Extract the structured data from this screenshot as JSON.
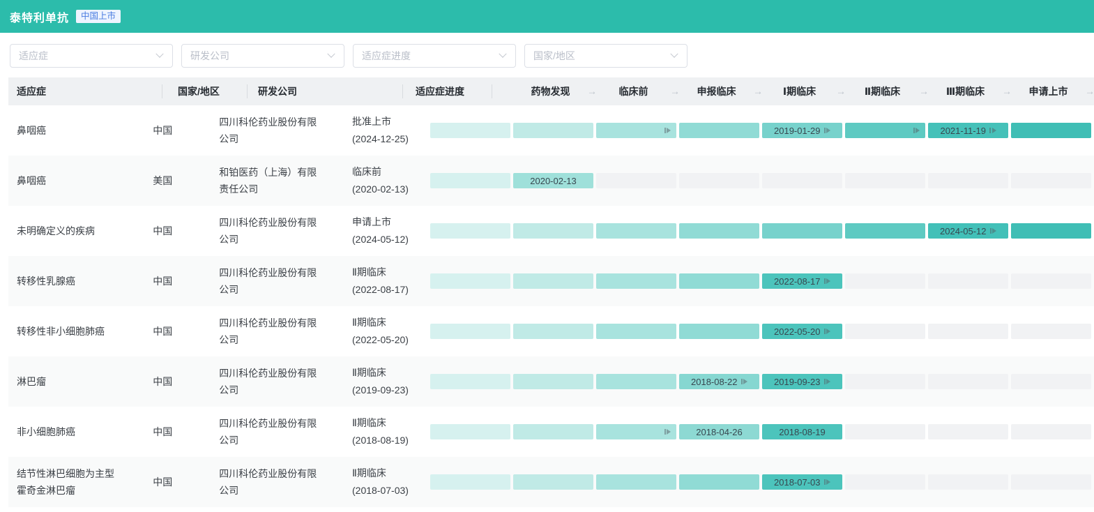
{
  "header": {
    "title": "泰特利单抗",
    "badge": "中国上市"
  },
  "filters": [
    {
      "placeholder": "适应症"
    },
    {
      "placeholder": "研发公司"
    },
    {
      "placeholder": "适应症进度"
    },
    {
      "placeholder": "国家/地区"
    }
  ],
  "table": {
    "columns": [
      "适应症",
      "国家/地区",
      "研发公司",
      "适应症进度"
    ],
    "stages": [
      "药物发现",
      "临床前",
      "申报临床",
      "Ⅰ期临床",
      "Ⅱ期临床",
      "Ⅲ期临床",
      "申请上市"
    ],
    "rows": [
      {
        "indication": "鼻咽癌",
        "region": "中国",
        "company": "四川科伦药业股份有限公司",
        "stage": "批准上市",
        "stage_date": "(2024-12-25)",
        "cells": [
          {
            "color": "#d6f1ef"
          },
          {
            "color": "#c0eae6"
          },
          {
            "color": "#a8e3de",
            "icon": true
          },
          {
            "color": "#90dbd5"
          },
          {
            "color": "#77d2cc",
            "date": "2019-01-29",
            "icon": true
          },
          {
            "color": "#5ecac2",
            "icon": true
          },
          {
            "color": "#45c1b9",
            "date": "2021-11-19",
            "icon": true
          },
          {
            "color": "#3fbeb5"
          }
        ]
      },
      {
        "indication": "鼻咽癌",
        "region": "美国",
        "company": "和铂医药（上海）有限责任公司",
        "stage": "临床前",
        "stage_date": "(2020-02-13)",
        "cells": [
          {
            "color": "#d6f1ef"
          },
          {
            "color": "#9fe0da",
            "date": "2020-02-13"
          },
          {
            "empty": true
          },
          {
            "empty": true
          },
          {
            "empty": true
          },
          {
            "empty": true
          },
          {
            "empty": true
          },
          {
            "empty": true
          }
        ]
      },
      {
        "indication": "未明确定义的疾病",
        "region": "中国",
        "company": "四川科伦药业股份有限公司",
        "stage": "申请上市",
        "stage_date": "(2024-05-12)",
        "cells": [
          {
            "color": "#d6f1ef"
          },
          {
            "color": "#c0eae6"
          },
          {
            "color": "#a8e3de"
          },
          {
            "color": "#90dbd5"
          },
          {
            "color": "#77d2cc"
          },
          {
            "color": "#5ecac2"
          },
          {
            "color": "#42c0b8",
            "date": "2024-05-12",
            "icon": true
          },
          {
            "color": "#3fbeb5"
          }
        ]
      },
      {
        "indication": "转移性乳腺癌",
        "region": "中国",
        "company": "四川科伦药业股份有限公司",
        "stage": "Ⅱ期临床",
        "stage_date": "(2022-08-17)",
        "cells": [
          {
            "color": "#d6f1ef"
          },
          {
            "color": "#c0eae6"
          },
          {
            "color": "#a8e3de"
          },
          {
            "color": "#90dbd5"
          },
          {
            "color": "#4cc4bc",
            "date": "2022-08-17",
            "icon": true
          },
          {
            "empty": true
          },
          {
            "empty": true
          },
          {
            "empty": true
          }
        ]
      },
      {
        "indication": "转移性非小细胞肺癌",
        "region": "中国",
        "company": "四川科伦药业股份有限公司",
        "stage": "Ⅱ期临床",
        "stage_date": "(2022-05-20)",
        "cells": [
          {
            "color": "#d6f1ef"
          },
          {
            "color": "#c0eae6"
          },
          {
            "color": "#a8e3de"
          },
          {
            "color": "#90dbd5"
          },
          {
            "color": "#4cc4bc",
            "date": "2022-05-20",
            "icon": true
          },
          {
            "empty": true
          },
          {
            "empty": true
          },
          {
            "empty": true
          }
        ]
      },
      {
        "indication": "淋巴瘤",
        "region": "中国",
        "company": "四川科伦药业股份有限公司",
        "stage": "Ⅱ期临床",
        "stage_date": "(2019-09-23)",
        "cells": [
          {
            "color": "#d6f1ef"
          },
          {
            "color": "#c0eae6"
          },
          {
            "color": "#a8e3de"
          },
          {
            "color": "#86d7d1",
            "date": "2018-08-22",
            "icon": true
          },
          {
            "color": "#4cc4bc",
            "date": "2019-09-23",
            "icon": true
          },
          {
            "empty": true
          },
          {
            "empty": true
          },
          {
            "empty": true
          }
        ]
      },
      {
        "indication": "非小细胞肺癌",
        "region": "中国",
        "company": "四川科伦药业股份有限公司",
        "stage": "Ⅱ期临床",
        "stage_date": "(2018-08-19)",
        "cells": [
          {
            "color": "#d6f1ef"
          },
          {
            "color": "#c0eae6"
          },
          {
            "color": "#a8e3de",
            "icon": true
          },
          {
            "color": "#8dd9d3",
            "date": "2018-04-26"
          },
          {
            "color": "#4cc4bc",
            "date": "2018-08-19"
          },
          {
            "empty": true
          },
          {
            "empty": true
          },
          {
            "empty": true
          }
        ]
      },
      {
        "indication": "结节性淋巴细胞为主型霍奇金淋巴瘤",
        "region": "中国",
        "company": "四川科伦药业股份有限公司",
        "stage": "Ⅱ期临床",
        "stage_date": "(2018-07-03)",
        "cells": [
          {
            "color": "#d6f1ef"
          },
          {
            "color": "#c0eae6"
          },
          {
            "color": "#a8e3de"
          },
          {
            "color": "#90dbd5"
          },
          {
            "color": "#4cc4bc",
            "date": "2018-07-03",
            "icon": true
          },
          {
            "empty": true
          },
          {
            "empty": true
          },
          {
            "empty": true
          }
        ]
      }
    ]
  },
  "colors": {
    "topbar": "#2cbcab",
    "badge_text": "#4a7be0",
    "empty_bar": "#f1f2f4",
    "filled_ramp_start": "#d6f1ef",
    "filled_ramp_end": "#3fbeb5"
  }
}
